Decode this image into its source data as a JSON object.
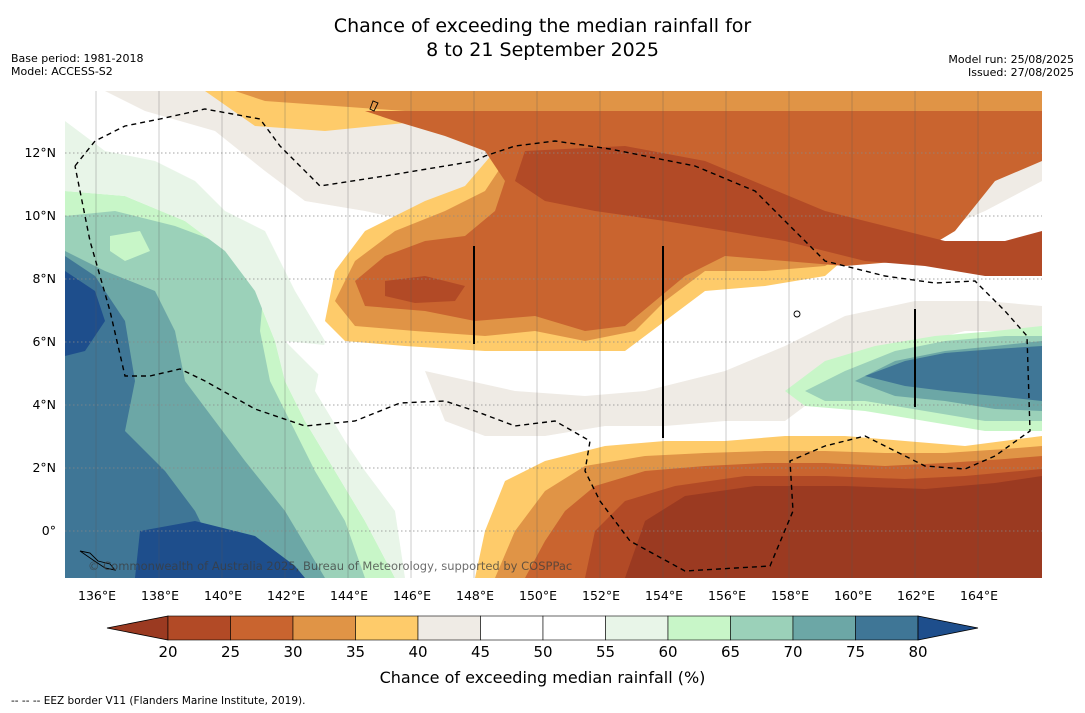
{
  "title": {
    "line1": "Chance of exceeding the median rainfall for",
    "line2": "8 to 21 September 2025"
  },
  "meta": {
    "base_period": "Base period: 1981-2018",
    "model": "Model: ACCESS-S2",
    "model_run": "Model run: 25/08/2025",
    "issued": "Issued: 27/08/2025"
  },
  "map": {
    "y_ticks": [
      "12°N",
      "10°N",
      "8°N",
      "6°N",
      "4°N",
      "2°N",
      "0°"
    ],
    "x_ticks": [
      "136°E",
      "138°E",
      "140°E",
      "142°E",
      "144°E",
      "146°E",
      "148°E",
      "150°E",
      "152°E",
      "154°E",
      "156°E",
      "158°E",
      "160°E",
      "162°E",
      "164°E"
    ],
    "copyright": "© Commonwealth of Australia 2025, Bureau of Meteorology, supported by COSPPac",
    "eez_note": "--  --  -- EEZ border V11 (Flanders Marine Institute, 2019)."
  },
  "colorbar": {
    "labels": [
      "20",
      "25",
      "30",
      "35",
      "40",
      "45",
      "50",
      "55",
      "60",
      "65",
      "70",
      "75",
      "80"
    ],
    "colors": [
      "#9b3a21",
      "#b24a26",
      "#c9642f",
      "#e09446",
      "#fecb6a",
      "#efebe5",
      "#ffffff",
      "#ffffff",
      "#e8f5e8",
      "#c8f6c8",
      "#9bd1b9",
      "#6ca7a6",
      "#3f7696",
      "#1e4e8c"
    ],
    "title": "Chance of exceeding median rainfall (%)"
  }
}
